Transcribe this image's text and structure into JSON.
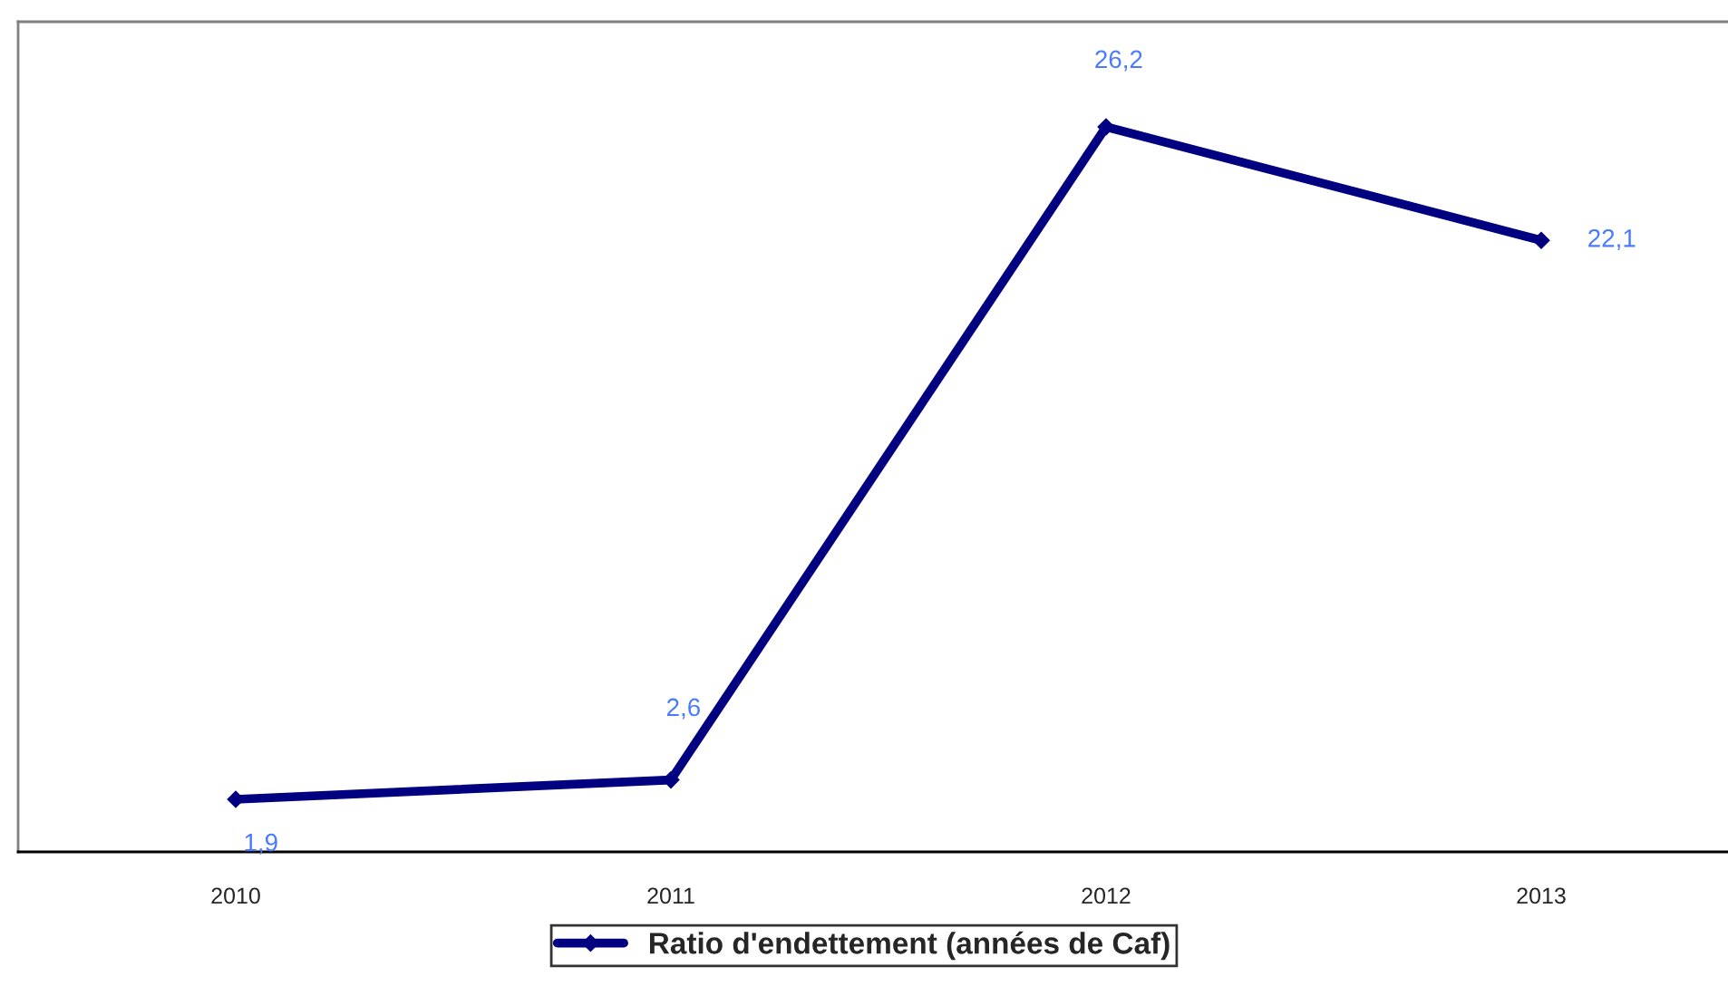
{
  "chart_data": {
    "type": "line",
    "categories": [
      "2010",
      "2011",
      "2012",
      "2013"
    ],
    "series": [
      {
        "name": "Ratio d'endettement (années de Caf)",
        "color": "#000080",
        "values": [
          1.9,
          2.6,
          26.2,
          22.1
        ],
        "value_labels": [
          "1,9",
          "2,6",
          "26,2",
          "22,1"
        ]
      }
    ],
    "ylim": [
      0,
      30
    ],
    "tick_labels": "x",
    "marker": "diamond",
    "line_style": "solid",
    "legend": "bottom",
    "grid": false
  }
}
